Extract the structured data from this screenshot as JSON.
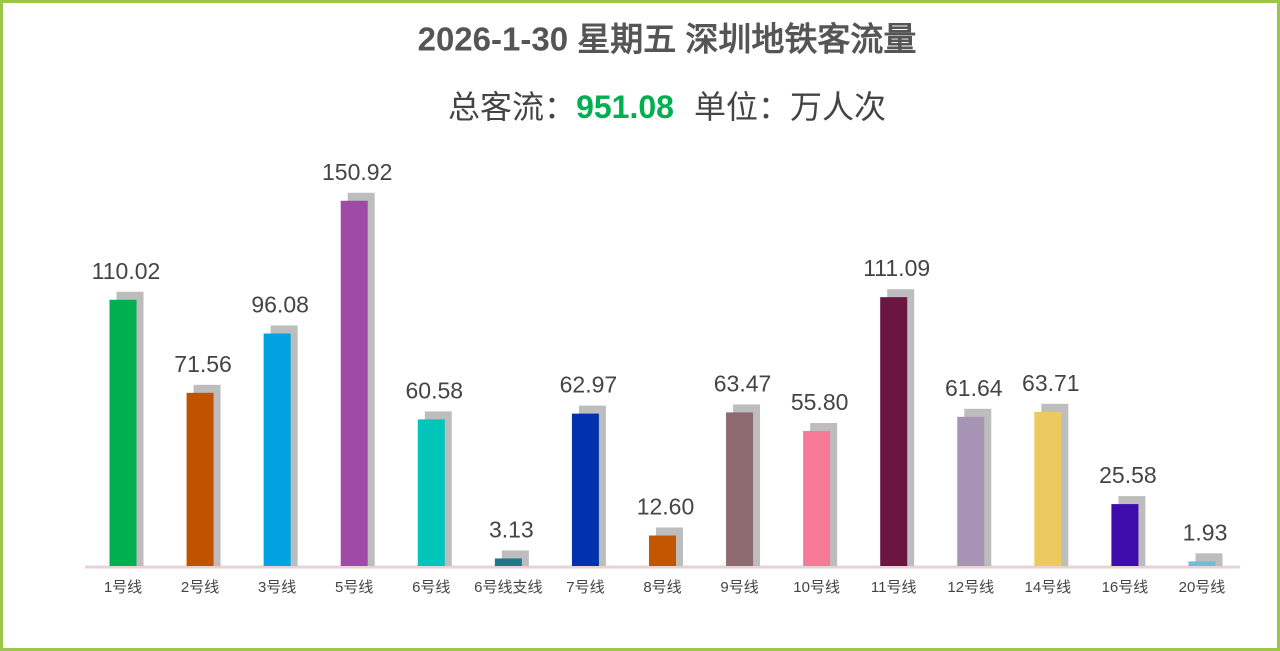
{
  "chart_data": {
    "type": "bar",
    "title": "2026-1-30 星期五  深圳地铁客流量",
    "total_label": "总客流：",
    "total": 951.08,
    "unit_label": "单位：万人次",
    "categories": [
      "1号线",
      "2号线",
      "3号线",
      "5号线",
      "6号线",
      "6号线支线",
      "7号线",
      "8号线",
      "9号线",
      "10号线",
      "11号线",
      "12号线",
      "14号线",
      "16号线",
      "20号线"
    ],
    "values": [
      110.02,
      71.56,
      96.08,
      150.92,
      60.58,
      3.13,
      62.97,
      12.6,
      63.47,
      55.8,
      111.09,
      61.64,
      63.71,
      25.58,
      1.93
    ],
    "value_labels": [
      "110.02",
      "71.56",
      "96.08",
      "150.92",
      "60.58",
      "3.13",
      "62.97",
      "12.60",
      "63.47",
      "55.80",
      "111.09",
      "61.64",
      "63.71",
      "25.58",
      "1.93"
    ],
    "colors": [
      "#00b050",
      "#bf5300",
      "#00a3df",
      "#a04aa8",
      "#00c5b8",
      "#1b7a86",
      "#0032ad",
      "#c25500",
      "#8c6a70",
      "#f67a95",
      "#6a1640",
      "#a793b3",
      "#ebca60",
      "#3d0cab",
      "#6cc0d6"
    ]
  }
}
